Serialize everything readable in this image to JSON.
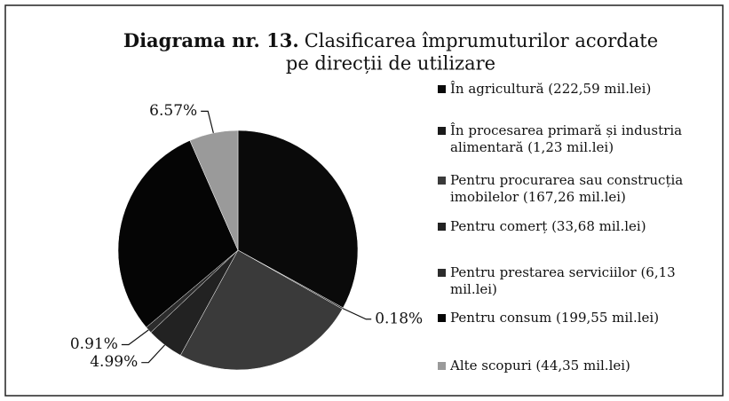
{
  "chart_data": {
    "type": "pie",
    "title": {
      "number": "Diagrama nr. 13.",
      "lines": [
        "Clasificarea împrumuturilor acordate",
        "pe direcții de utilizare"
      ]
    },
    "categories": [
      "În agricultură (222,59 mil.lei)",
      "În procesarea primară și industria alimentară (1,23 mil.lei)",
      "Pentru procurarea sau construcția imobilelor (167,26 mil.lei)",
      "Pentru comerț (33,68 mil.lei)",
      "Pentru prestarea serviciilor (6,13 mil.lei)",
      "Pentru consum (199,55 mil.lei)",
      "Alte scopuri (44,35 mil.lei)"
    ],
    "values": [
      32.99,
      0.18,
      24.79,
      4.99,
      0.91,
      29.57,
      6.57
    ],
    "value_labels": [
      null,
      "0.18%",
      null,
      "4.99%",
      "0.91%",
      null,
      "6.57%"
    ],
    "colors": [
      "#0a0a0a",
      "#1a1a1a",
      "#3a3a3a",
      "#222222",
      "#2c2c2c",
      "#050505",
      "#9a9a9a"
    ]
  }
}
